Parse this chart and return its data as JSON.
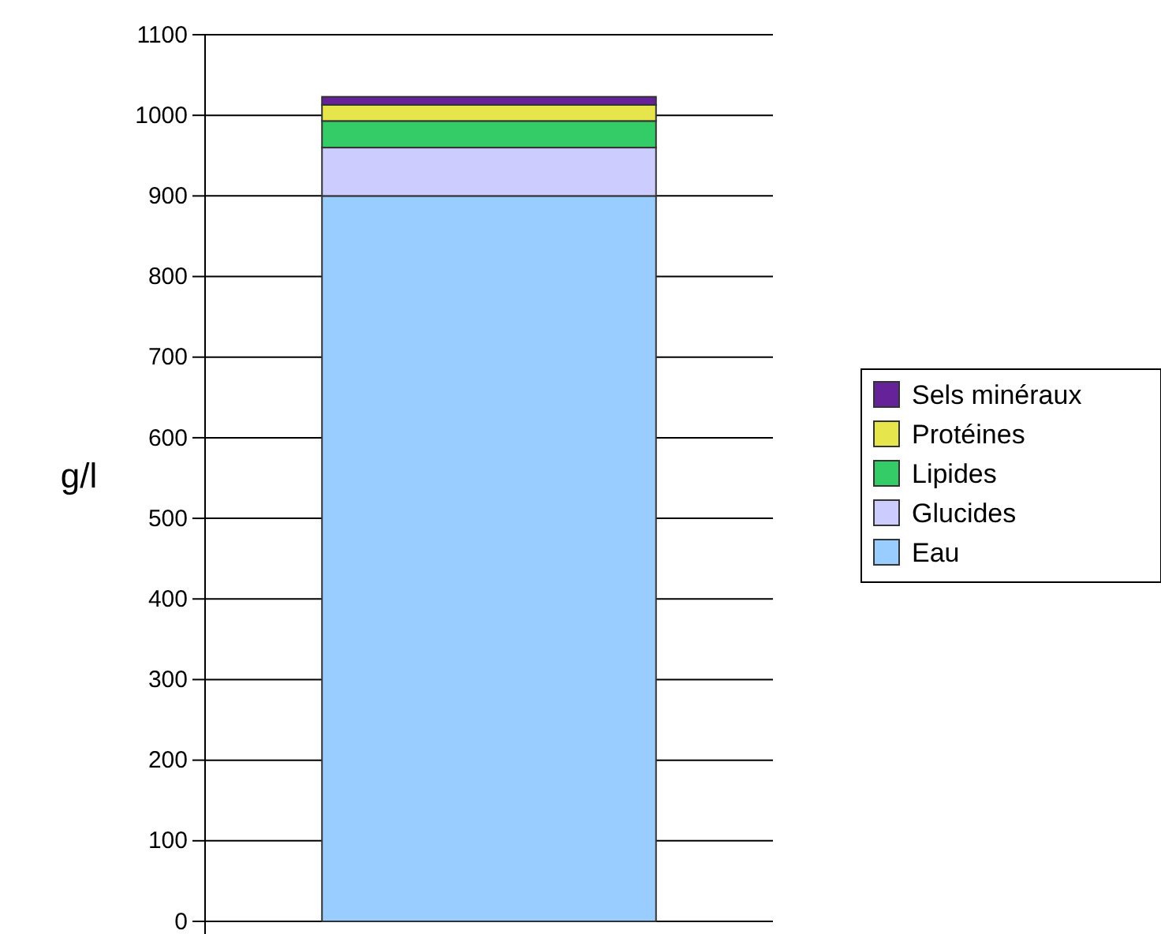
{
  "chart_data": {
    "type": "bar",
    "ylabel": "g/l",
    "categories": [
      null
    ],
    "stacked": true,
    "series": [
      {
        "name": "Eau",
        "color": "#99ccff",
        "values": [
          900
        ]
      },
      {
        "name": "Glucides",
        "color": "#ccccff",
        "values": [
          60
        ]
      },
      {
        "name": "Lipides",
        "color": "#33cc66",
        "values": [
          33
        ]
      },
      {
        "name": "Protéines",
        "color": "#e6e64c",
        "values": [
          20
        ]
      },
      {
        "name": "Sels minéraux",
        "color": "#662299",
        "values": [
          10
        ]
      }
    ],
    "ylim": [
      0,
      1100
    ],
    "yticks": [
      0,
      100,
      200,
      300,
      400,
      500,
      600,
      700,
      800,
      900,
      1000,
      1100
    ],
    "grid": "y",
    "legend": "right"
  }
}
